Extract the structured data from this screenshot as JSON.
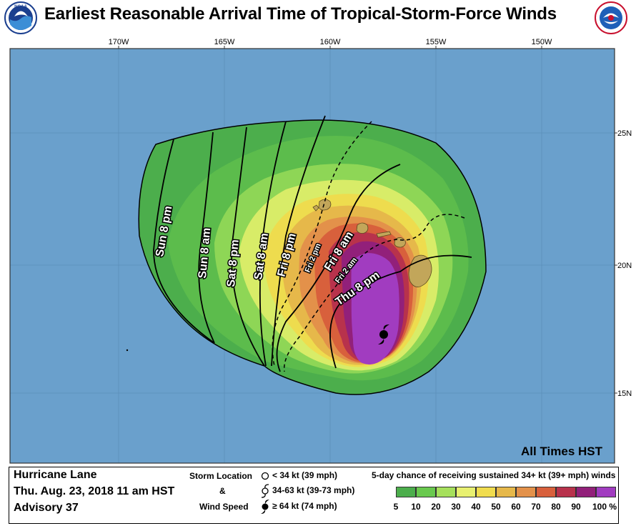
{
  "header": {
    "title": "Earliest Reasonable Arrival Time of Tropical-Storm-Force Winds"
  },
  "map": {
    "lon_labels": [
      "170W",
      "165W",
      "160W",
      "155W",
      "150W"
    ],
    "lat_labels": [
      "25N",
      "20N",
      "15N"
    ],
    "ocean_color": "#6aa0cc",
    "land_color": "#c2a65a",
    "frame_color": "#8c8c8c",
    "times_note": "All Times HST",
    "time_labels": [
      {
        "id": "sun-8pm",
        "text": "Sun 8 pm"
      },
      {
        "id": "sun-8am",
        "text": "Sun 8 am"
      },
      {
        "id": "sat-8pm",
        "text": "Sat 8 pm"
      },
      {
        "id": "sat-8am",
        "text": "Sat 8 am"
      },
      {
        "id": "fri-8pm",
        "text": "Fri 8 pm"
      },
      {
        "id": "fri-2pm",
        "text": "Fri 2 pm"
      },
      {
        "id": "fri-8am",
        "text": "Fri 8 am"
      },
      {
        "id": "fri-2am",
        "text": "Fri 2 am"
      },
      {
        "id": "thu-8pm",
        "text": "Thu 8 pm"
      }
    ]
  },
  "storm": {
    "name": "Hurricane Lane",
    "date": "Thu. Aug. 23, 2018  11 am HST",
    "advisory": "Advisory 37"
  },
  "legend": {
    "storm_location": "Storm Location",
    "amp": "&",
    "wind_speed": "Wind Speed",
    "symbols": [
      {
        "icon": "open-circle-icon",
        "label": "< 34 kt (39 mph)"
      },
      {
        "icon": "tropical-storm-icon",
        "label": "34-63 kt (39-73 mph)"
      },
      {
        "icon": "hurricane-icon",
        "label": "≥ 64 kt (74 mph)"
      }
    ],
    "scale_title": "5-day chance of receiving sustained 34+ kt (39+ mph) winds",
    "scale_colors": [
      "#4cae4c",
      "#69c94e",
      "#a6e05c",
      "#e8f070",
      "#f0dc4e",
      "#e6b84a",
      "#e3914a",
      "#d8603c",
      "#b8324c",
      "#92207a",
      "#a13cc0"
    ],
    "scale_ticks": [
      "5",
      "10",
      "20",
      "30",
      "40",
      "50",
      "60",
      "70",
      "80",
      "90",
      "100 %"
    ]
  }
}
